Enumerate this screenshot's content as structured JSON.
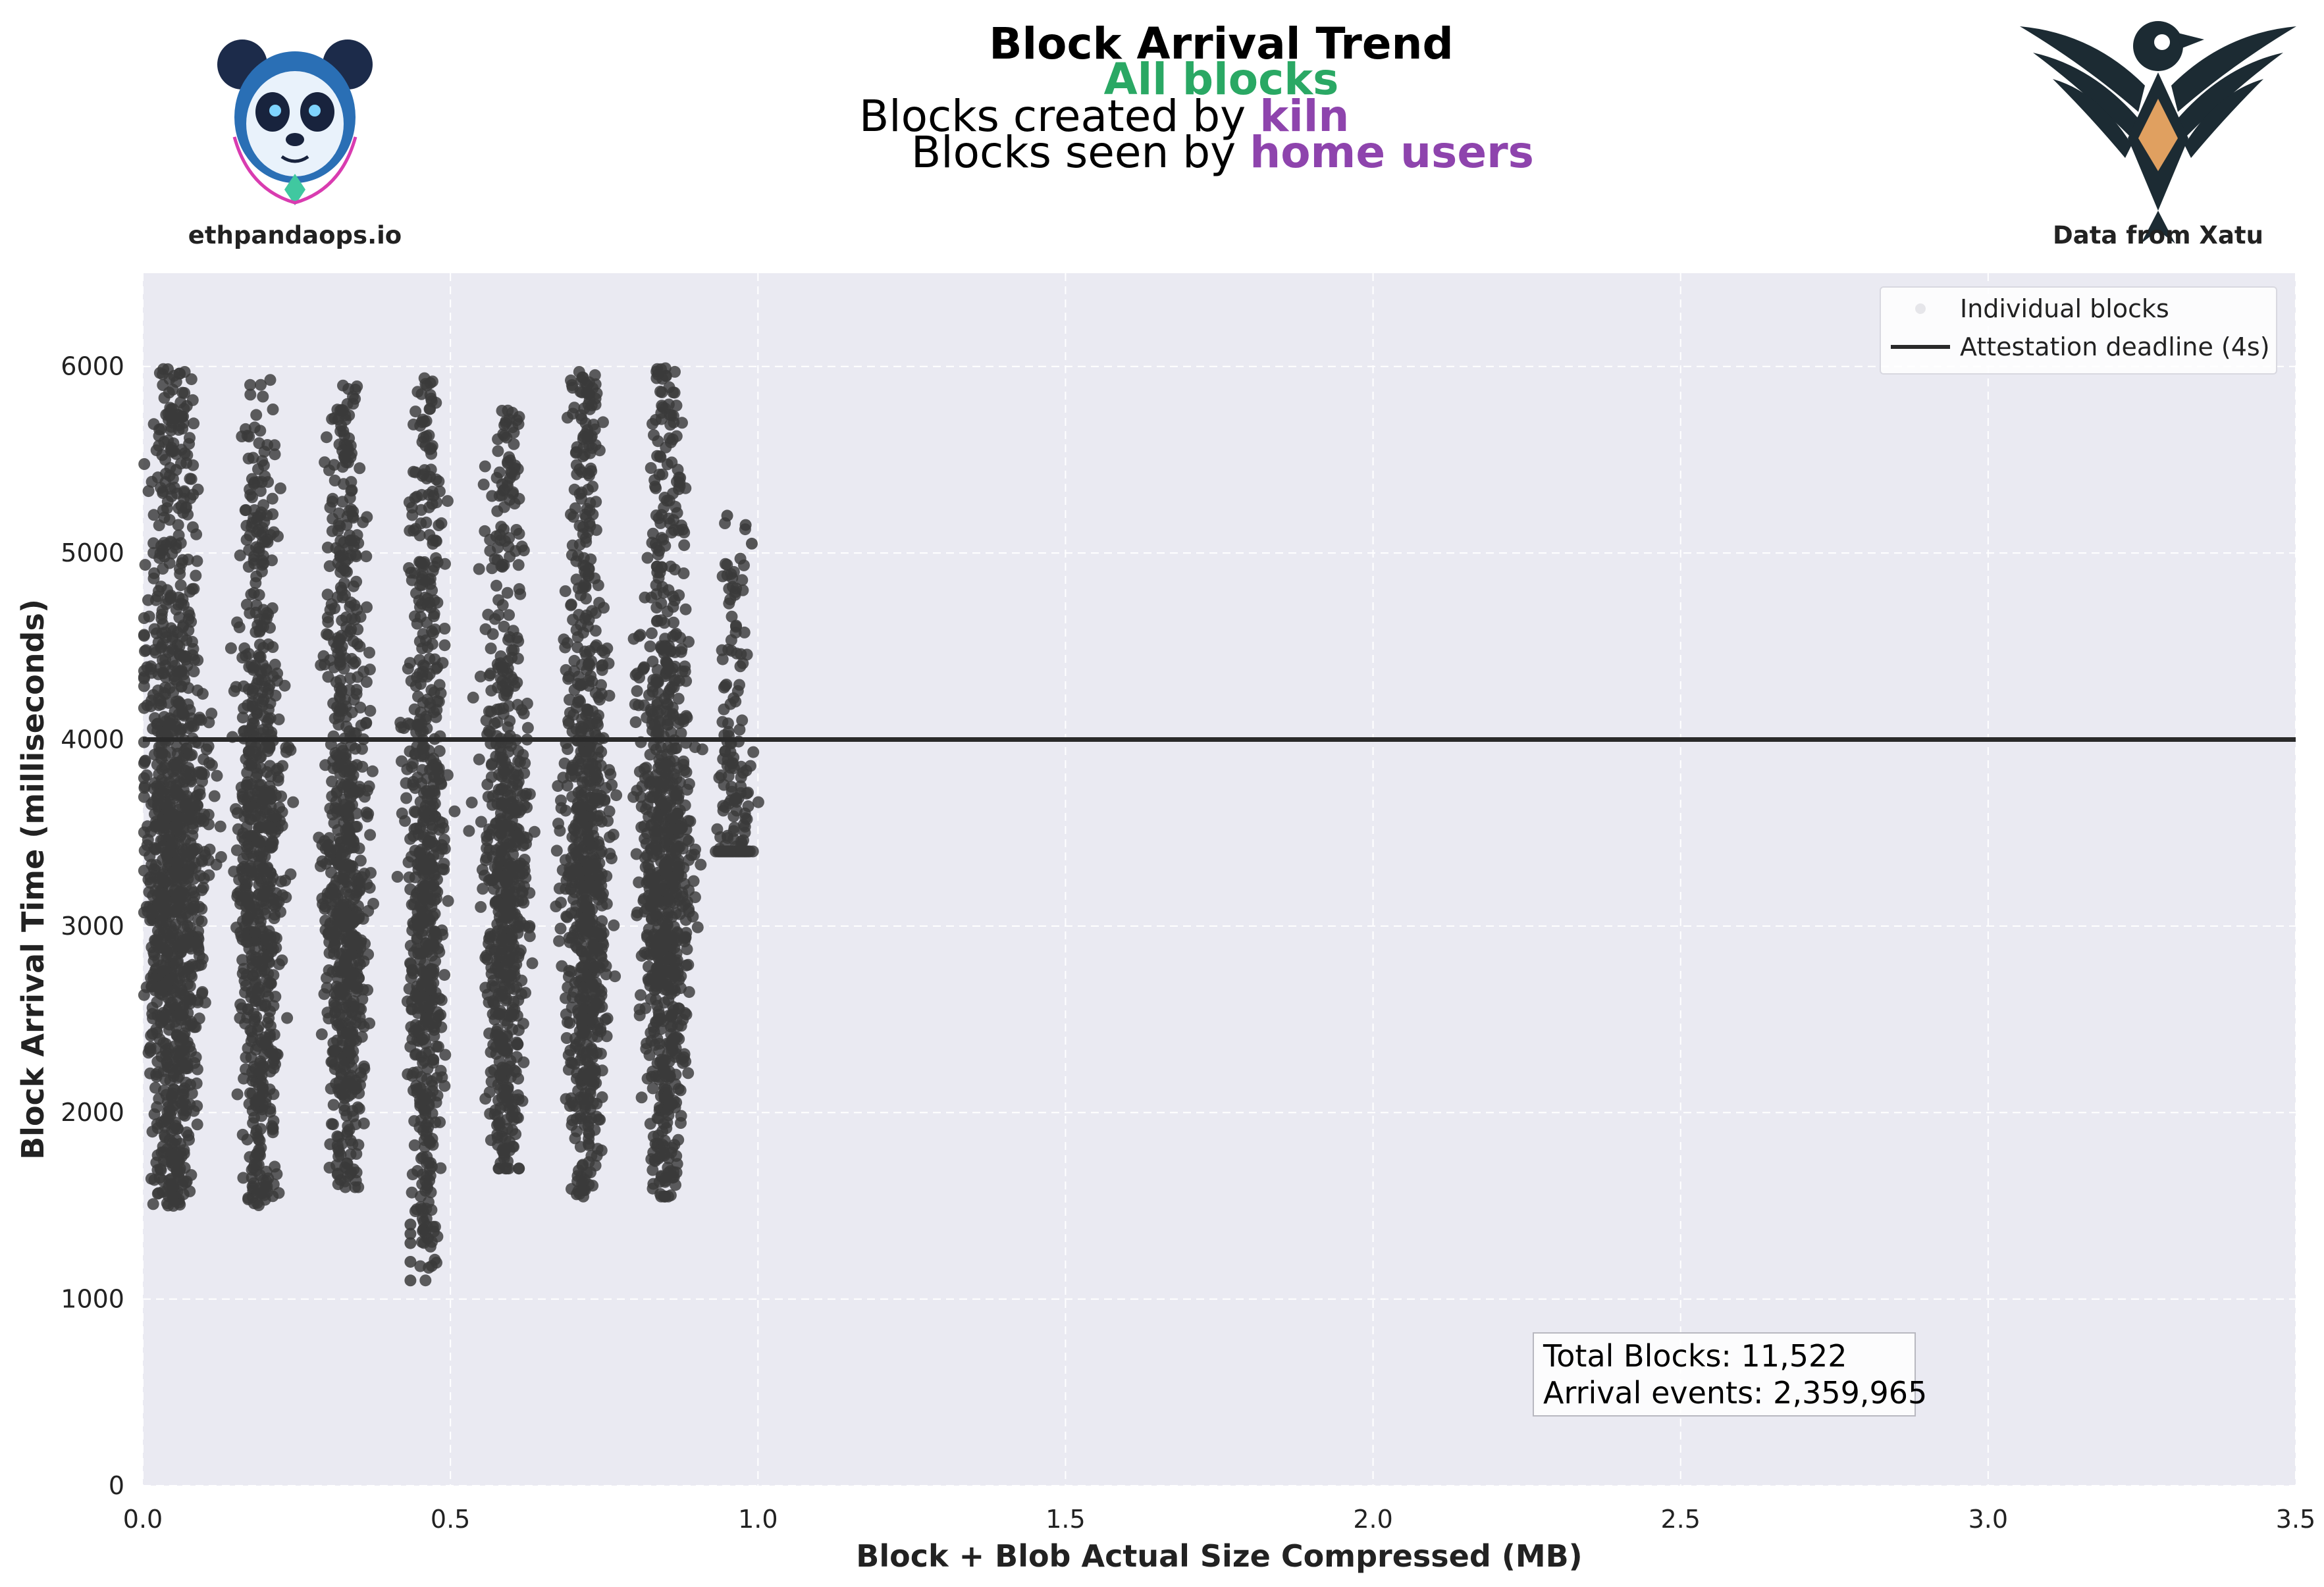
{
  "header": {
    "title": "Block Arrival Trend",
    "subtitle": "All blocks",
    "line3_prefix": "Blocks created by ",
    "line3_highlight": "kiln",
    "line4_prefix": "Blocks seen by ",
    "line4_highlight": "home users"
  },
  "logos": {
    "left_icon": "panda-logo-icon",
    "left_caption": "ethpandaops.io",
    "right_icon": "xatu-bird-logo-icon",
    "right_caption": "Data from Xatu"
  },
  "colors": {
    "subtitle": "#2aa864",
    "highlight": "#8e44ad",
    "points": "#3a3a3a",
    "deadline_line": "#2a2a2a",
    "plot_background": "#eaeaf2"
  },
  "legend": {
    "points_label": "Individual blocks",
    "line_label": "Attestation deadline (4s)",
    "placement": "upper-right"
  },
  "stats": {
    "total_blocks": "Total Blocks: 11,522",
    "arrival_events": "Arrival events: 2,359,965"
  },
  "chart_data": {
    "type": "scatter",
    "title": "Block Arrival Trend",
    "xlabel": "Block + Blob Actual Size Compressed (MB)",
    "ylabel": "Block Arrival Time (milliseconds)",
    "xlim": [
      0.0,
      3.5
    ],
    "ylim": [
      0,
      6500
    ],
    "xticks": [
      0.0,
      0.5,
      1.0,
      1.5,
      2.0,
      2.5,
      3.0,
      3.5
    ],
    "xtick_labels": [
      "0.0",
      "0.5",
      "1.0",
      "1.5",
      "2.0",
      "2.5",
      "3.0",
      "3.5"
    ],
    "yticks": [
      0,
      1000,
      2000,
      3000,
      4000,
      5000,
      6000
    ],
    "ytick_labels": [
      "0",
      "1000",
      "2000",
      "3000",
      "4000",
      "5000",
      "6000"
    ],
    "grid": true,
    "hline": {
      "y": 4000,
      "label": "Attestation deadline (4s)"
    },
    "series": [
      {
        "name": "Individual blocks",
        "clusters": [
          {
            "x_center": 0.05,
            "x_spread": 0.055,
            "y_min": 1500,
            "y_max": 6000,
            "weight": 1.6
          },
          {
            "x_center": 0.19,
            "x_spread": 0.04,
            "y_min": 1500,
            "y_max": 5950,
            "weight": 1.0
          },
          {
            "x_center": 0.33,
            "x_spread": 0.04,
            "y_min": 1600,
            "y_max": 5900,
            "weight": 1.0
          },
          {
            "x_center": 0.46,
            "x_spread": 0.035,
            "y_min": 1100,
            "y_max": 5950,
            "weight": 0.9
          },
          {
            "x_center": 0.59,
            "x_spread": 0.04,
            "y_min": 1700,
            "y_max": 5800,
            "weight": 0.9
          },
          {
            "x_center": 0.72,
            "x_spread": 0.04,
            "y_min": 1550,
            "y_max": 6000,
            "weight": 1.1
          },
          {
            "x_center": 0.85,
            "x_spread": 0.045,
            "y_min": 1550,
            "y_max": 6000,
            "weight": 1.2
          },
          {
            "x_center": 0.96,
            "x_spread": 0.03,
            "y_min": 3400,
            "y_max": 5200,
            "weight": 0.25
          }
        ],
        "outliers": [
          {
            "x": 0.435,
            "y": 1400
          },
          {
            "x": 0.435,
            "y": 1350
          },
          {
            "x": 0.435,
            "y": 1300
          },
          {
            "x": 0.435,
            "y": 1200
          },
          {
            "x": 0.435,
            "y": 1100
          },
          {
            "x": 0.99,
            "y": 5050
          },
          {
            "x": 0.98,
            "y": 5150
          },
          {
            "x": 0.95,
            "y": 5200
          }
        ]
      }
    ]
  }
}
